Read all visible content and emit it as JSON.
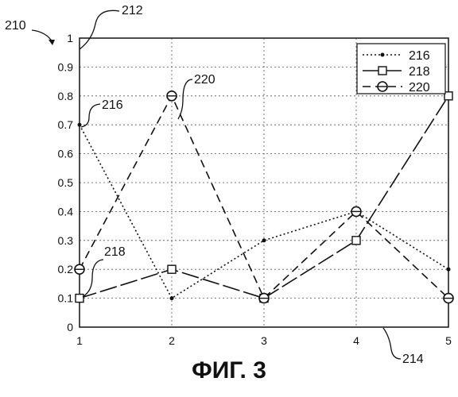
{
  "figure": {
    "caption": "ФИГ. 3",
    "refs": {
      "figure": "210",
      "axes": "212",
      "x_axis": "214",
      "series_216": "216",
      "series_218": "218",
      "series_220": "220"
    }
  },
  "chart_data": {
    "type": "line",
    "title": "",
    "xlabel": "",
    "ylabel": "",
    "x": [
      1,
      2,
      3,
      4,
      5
    ],
    "xlim": [
      1,
      5
    ],
    "ylim": [
      0,
      1
    ],
    "xticks": [
      "1",
      "2",
      "3",
      "4",
      "5"
    ],
    "yticks": [
      "0",
      "0.1",
      "0.2",
      "0.3",
      "0.4",
      "0.5",
      "0.6",
      "0.7",
      "0.8",
      "0.9",
      "1"
    ],
    "grid": true,
    "legend_position": "top-right",
    "series": [
      {
        "name": "216",
        "values": [
          0.7,
          0.1,
          0.3,
          0.4,
          0.2
        ],
        "line_style": "dotted",
        "marker": "dot",
        "color": "#111111"
      },
      {
        "name": "218",
        "values": [
          0.1,
          0.2,
          0.1,
          0.3,
          0.8
        ],
        "line_style": "long-dash",
        "marker": "square",
        "color": "#111111"
      },
      {
        "name": "220",
        "values": [
          0.2,
          0.8,
          0.1,
          0.4,
          0.1
        ],
        "line_style": "dashed",
        "marker": "circle",
        "color": "#111111"
      }
    ]
  }
}
